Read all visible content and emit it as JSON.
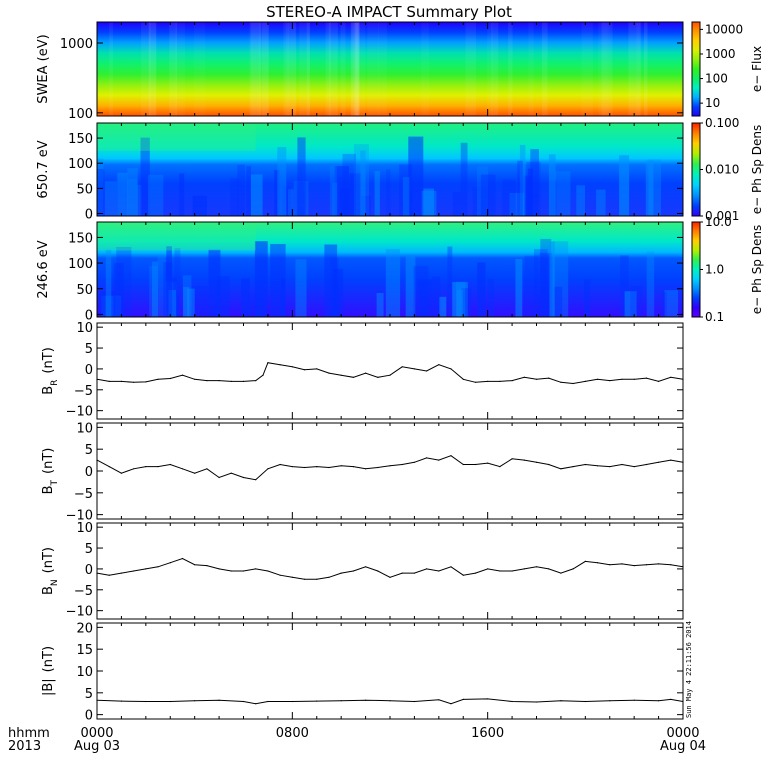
{
  "title": "STEREO-A IMPACT Summary Plot",
  "stamp": "Sun May  4 22:11:56 2014",
  "x_axis": {
    "row1_label": "hhmm",
    "row2_label": "2013",
    "ticks": [
      {
        "hhmm": "0000",
        "date": "Aug 03",
        "hour": 0
      },
      {
        "hhmm": "0800",
        "date": "",
        "hour": 8
      },
      {
        "hhmm": "1600",
        "date": "",
        "hour": 16
      },
      {
        "hhmm": "0000",
        "date": "Aug 04",
        "hour": 24
      }
    ]
  },
  "chart_data": [
    {
      "type": "heatmap",
      "ylabel": "SWEA (eV)",
      "yscale": "log",
      "ylim": [
        90,
        2000
      ],
      "yticks": [
        {
          "v": 100,
          "label": "100"
        },
        {
          "v": 1000,
          "label": "1000"
        }
      ],
      "colorbar": {
        "label": "e− Flux",
        "scale": "log",
        "range": [
          3,
          20000
        ],
        "ticks": [
          {
            "v": 10,
            "label": "10"
          },
          {
            "v": 100,
            "label": "100"
          },
          {
            "v": 1000,
            "label": "1000"
          },
          {
            "v": 10000,
            "label": "10000"
          }
        ]
      },
      "palette": [
        "#1f00ff",
        "#0040ff",
        "#00b0ff",
        "#00f0c0",
        "#10f060",
        "#30f020",
        "#90f010",
        "#d8f000",
        "#ffd000",
        "#ff9800",
        "#ff5000"
      ]
    },
    {
      "type": "heatmap",
      "ylabel": "650.7 eV",
      "ylim": [
        -5,
        180
      ],
      "yticks": [
        {
          "v": 0,
          "label": "0"
        },
        {
          "v": 50,
          "label": "50"
        },
        {
          "v": 100,
          "label": "100"
        },
        {
          "v": 150,
          "label": "150"
        }
      ],
      "colorbar": {
        "label": "e− Ph Sp Dens",
        "scale": "log",
        "range": [
          0.001,
          0.1
        ],
        "ticks": [
          {
            "v": 0.001,
            "label": "0.001"
          },
          {
            "v": 0.01,
            "label": "0.010"
          },
          {
            "v": 0.1,
            "label": "0.100"
          }
        ]
      },
      "palette": [
        "#3000ff",
        "#0040ff",
        "#0090ff",
        "#00d0ff",
        "#00f0c0",
        "#30f050",
        "#b0f000",
        "#ffd000",
        "#ff8000",
        "#ff2000"
      ]
    },
    {
      "type": "heatmap",
      "ylabel": "246.6 eV",
      "ylim": [
        -5,
        180
      ],
      "yticks": [
        {
          "v": 0,
          "label": "0"
        },
        {
          "v": 50,
          "label": "50"
        },
        {
          "v": 100,
          "label": "100"
        },
        {
          "v": 150,
          "label": "150"
        }
      ],
      "colorbar": {
        "label": "e− Ph Sp Dens",
        "scale": "log",
        "range": [
          0.1,
          10
        ],
        "ticks": [
          {
            "v": 0.1,
            "label": "0.1"
          },
          {
            "v": 1,
            "label": "1.0"
          },
          {
            "v": 10,
            "label": "10.0"
          }
        ]
      },
      "palette": [
        "#6000ff",
        "#3000ff",
        "#0040ff",
        "#0090ff",
        "#00d0ff",
        "#00f0c0",
        "#30f050",
        "#b0f000",
        "#ffd000",
        "#ff8000",
        "#ff2000"
      ]
    },
    {
      "type": "line",
      "ylabel_main": "B",
      "ylabel_sub": "R",
      "ylabel_unit": "(nT)",
      "ylim": [
        -12,
        11
      ],
      "yticks": [
        {
          "v": -10,
          "label": "−10"
        },
        {
          "v": -5,
          "label": "−5"
        },
        {
          "v": 0,
          "label": "0"
        },
        {
          "v": 5,
          "label": "5"
        },
        {
          "v": 10,
          "label": "10"
        }
      ],
      "x": [
        0,
        0.5,
        1,
        1.5,
        2,
        2.5,
        3,
        3.5,
        4,
        4.5,
        5,
        5.5,
        6,
        6.5,
        6.8,
        7,
        7.5,
        8,
        8.5,
        9,
        9.5,
        10,
        10.5,
        11,
        11.5,
        12,
        12.5,
        13,
        13.5,
        14,
        14.5,
        15,
        15.5,
        16,
        16.5,
        17,
        17.5,
        18,
        18.5,
        19,
        19.5,
        20,
        20.5,
        21,
        21.5,
        22,
        22.5,
        23,
        23.5,
        24
      ],
      "y": [
        -2.5,
        -3,
        -3,
        -3.2,
        -3.1,
        -2.5,
        -2.3,
        -1.5,
        -2.5,
        -2.8,
        -2.8,
        -3,
        -3,
        -2.8,
        -1.5,
        1.5,
        1,
        0.5,
        -0.2,
        0,
        -1,
        -1.5,
        -2,
        -1,
        -2,
        -1.5,
        0.5,
        0,
        -0.5,
        1,
        0,
        -2.5,
        -3.2,
        -3,
        -3,
        -2.8,
        -2,
        -2.5,
        -2.2,
        -3.2,
        -3.5,
        -3,
        -2.5,
        -2.8,
        -2.5,
        -2.5,
        -2.2,
        -3,
        -2,
        -2.5
      ]
    },
    {
      "type": "line",
      "ylabel_main": "B",
      "ylabel_sub": "T",
      "ylabel_unit": "(nT)",
      "ylim": [
        -11,
        11
      ],
      "yticks": [
        {
          "v": -10,
          "label": "−10"
        },
        {
          "v": -5,
          "label": "−5"
        },
        {
          "v": 0,
          "label": "0"
        },
        {
          "v": 5,
          "label": "5"
        },
        {
          "v": 10,
          "label": "10"
        }
      ],
      "x": [
        0,
        0.5,
        1,
        1.5,
        2,
        2.5,
        3,
        3.5,
        4,
        4.5,
        5,
        5.5,
        6,
        6.5,
        7,
        7.5,
        8,
        8.5,
        9,
        9.5,
        10,
        10.5,
        11,
        11.5,
        12,
        12.5,
        13,
        13.5,
        14,
        14.5,
        15,
        15.5,
        16,
        16.5,
        17,
        17.5,
        18,
        18.5,
        19,
        19.5,
        20,
        20.5,
        21,
        21.5,
        22,
        22.5,
        23,
        23.5,
        24
      ],
      "y": [
        2.5,
        1,
        -0.5,
        0.5,
        1,
        1,
        1.5,
        0.5,
        -0.5,
        0.5,
        -1.5,
        -0.5,
        -1.5,
        -2,
        0.5,
        1.5,
        1,
        0.8,
        1,
        0.8,
        1.2,
        1,
        0.5,
        0.8,
        1.2,
        1.5,
        2,
        3,
        2.5,
        3.5,
        1.5,
        1.5,
        1.8,
        1,
        2.8,
        2.5,
        2,
        1.5,
        0.5,
        1,
        1.5,
        1.2,
        1,
        1.5,
        1,
        1.5,
        2,
        2.5,
        2
      ]
    },
    {
      "type": "line",
      "ylabel_main": "B",
      "ylabel_sub": "N",
      "ylabel_unit": "(nT)",
      "ylim": [
        -12,
        11
      ],
      "yticks": [
        {
          "v": -10,
          "label": "−10"
        },
        {
          "v": -5,
          "label": "−5"
        },
        {
          "v": 0,
          "label": "0"
        },
        {
          "v": 5,
          "label": "5"
        },
        {
          "v": 10,
          "label": "10"
        }
      ],
      "x": [
        0,
        0.5,
        1,
        1.5,
        2,
        2.5,
        3,
        3.5,
        4,
        4.5,
        5,
        5.5,
        6,
        6.5,
        7,
        7.5,
        8,
        8.5,
        9,
        9.5,
        10,
        10.5,
        11,
        11.5,
        12,
        12.5,
        13,
        13.5,
        14,
        14.5,
        15,
        15.5,
        16,
        16.5,
        17,
        17.5,
        18,
        18.5,
        19,
        19.5,
        20,
        20.5,
        21,
        21.5,
        22,
        22.5,
        23,
        23.5,
        24
      ],
      "y": [
        -1,
        -1.5,
        -1,
        -0.5,
        0,
        0.5,
        1.5,
        2.5,
        1,
        0.8,
        0,
        -0.5,
        -0.5,
        0,
        -0.5,
        -1.5,
        -2,
        -2.5,
        -2.5,
        -2,
        -1,
        -0.5,
        0.5,
        -0.5,
        -2,
        -1,
        -1,
        0,
        -0.5,
        0.5,
        -1.5,
        -1,
        0,
        -0.5,
        -0.5,
        0,
        0.5,
        0,
        -1,
        0,
        1.8,
        1.5,
        1,
        1.2,
        0.8,
        1,
        1.2,
        1,
        0.5
      ]
    },
    {
      "type": "line",
      "ylabel_main": "|B|",
      "ylabel_unit": "(nT)",
      "ylim": [
        -1,
        21
      ],
      "yticks": [
        {
          "v": 0,
          "label": "0"
        },
        {
          "v": 5,
          "label": "5"
        },
        {
          "v": 10,
          "label": "10"
        },
        {
          "v": 15,
          "label": "15"
        },
        {
          "v": 20,
          "label": "20"
        }
      ],
      "x": [
        0,
        1,
        2,
        3,
        4,
        5,
        6,
        6.5,
        7,
        8,
        9,
        10,
        11,
        12,
        13,
        14,
        14.5,
        15,
        16,
        17,
        18,
        19,
        20,
        21,
        22,
        23,
        23.5,
        24
      ],
      "y": [
        3.3,
        3.1,
        3,
        3,
        3.2,
        3.3,
        3,
        2.5,
        3,
        3,
        3.1,
        3.2,
        3.3,
        3.2,
        3,
        3.4,
        2.5,
        3.5,
        3.6,
        3,
        2.9,
        3.2,
        3,
        3.2,
        3.3,
        3.2,
        3.5,
        3
      ]
    }
  ]
}
